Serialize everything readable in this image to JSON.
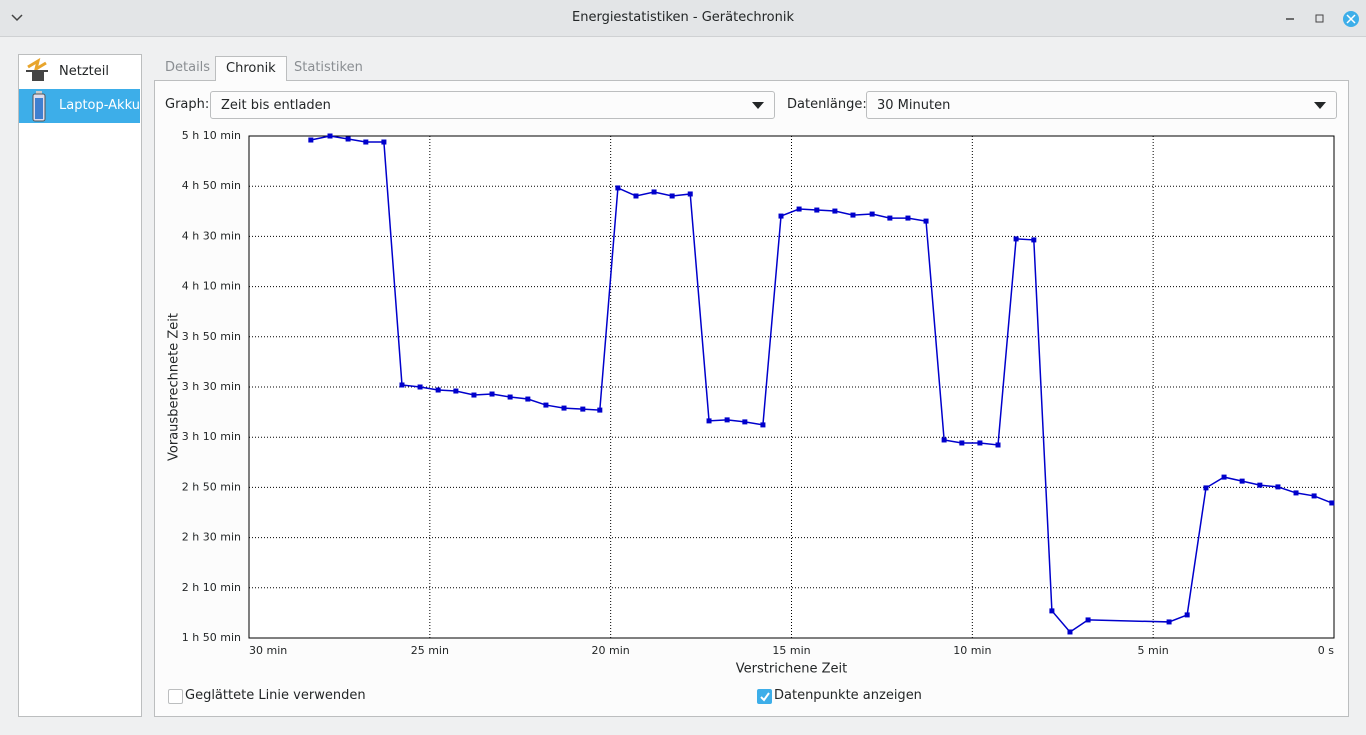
{
  "window": {
    "title": "Energiestatistiken - Gerätechronik"
  },
  "sidebar": {
    "items": [
      {
        "label": "Netzteil",
        "selected": false
      },
      {
        "label": "Laptop-Akku",
        "selected": true
      }
    ]
  },
  "tabs": {
    "items": [
      "Details",
      "Chronik",
      "Statistiken"
    ],
    "active": 1
  },
  "controls": {
    "graph_label": "Graph:",
    "graph_value": "Zeit bis entladen",
    "length_label": "Datenlänge:",
    "length_value": "30 Minuten"
  },
  "checkboxes": [
    {
      "label": "Geglättete Linie verwenden",
      "checked": false
    },
    {
      "label": "Datenpunkte anzeigen",
      "checked": true
    }
  ],
  "chart_data": {
    "type": "line",
    "x_label": "Verstrichene Zeit",
    "y_label": "Vorausberechnete Zeit",
    "grid": true,
    "markers": true,
    "xlim": [
      30,
      0
    ],
    "ylim": [
      110,
      310
    ],
    "xticks": [
      {
        "value": 30,
        "label": "30 min"
      },
      {
        "value": 25,
        "label": "25 min"
      },
      {
        "value": 20,
        "label": "20 min"
      },
      {
        "value": 15,
        "label": "15 min"
      },
      {
        "value": 10,
        "label": "10 min"
      },
      {
        "value": 5,
        "label": "5 min"
      },
      {
        "value": 0,
        "label": "0 s"
      }
    ],
    "yticks": [
      {
        "value": 110,
        "label": "1 h 50 min"
      },
      {
        "value": 130,
        "label": "2 h 10 min"
      },
      {
        "value": 150,
        "label": "2 h 30 min"
      },
      {
        "value": 170,
        "label": "2 h 50 min"
      },
      {
        "value": 190,
        "label": "3 h 10 min"
      },
      {
        "value": 210,
        "label": "3 h 30 min"
      },
      {
        "value": 230,
        "label": "3 h 50 min"
      },
      {
        "value": 250,
        "label": "4 h 10 min"
      },
      {
        "value": 270,
        "label": "4 h 30 min"
      },
      {
        "value": 290,
        "label": "4 h 50 min"
      },
      {
        "value": 310,
        "label": "5 h 10 min"
      }
    ],
    "x": [
      28.29,
      27.76,
      27.26,
      26.77,
      26.27,
      25.77,
      25.27,
      24.77,
      24.28,
      23.78,
      23.28,
      22.78,
      22.29,
      21.79,
      21.29,
      20.77,
      20.3,
      19.8,
      19.3,
      18.8,
      18.3,
      17.8,
      17.28,
      16.78,
      16.29,
      15.79,
      15.29,
      14.79,
      14.3,
      13.8,
      13.3,
      12.77,
      12.28,
      11.78,
      11.28,
      10.78,
      10.29,
      9.79,
      9.29,
      8.79,
      8.3,
      7.8,
      7.3,
      6.8,
      4.56,
      4.06,
      3.54,
      3.04,
      2.54,
      2.05,
      1.55,
      1.05,
      0.55,
      0.06
    ],
    "series": [
      {
        "color": "#0000cc",
        "values": [
          308.4,
          310,
          308.8,
          307.6,
          307.6,
          210.8,
          210,
          208.8,
          208.4,
          206.8,
          207.2,
          206,
          205.2,
          202.8,
          201.6,
          201.2,
          200.8,
          289.3,
          286.1,
          287.7,
          286.1,
          286.9,
          196.5,
          196.9,
          196.1,
          194.9,
          278.1,
          280.9,
          280.5,
          280.1,
          278.5,
          278.9,
          277.3,
          277.3,
          276.1,
          188.9,
          187.7,
          187.7,
          186.9,
          269,
          268.6,
          120.8,
          112.4,
          117.2,
          116.4,
          119.2,
          169.8,
          174.1,
          172.5,
          170.9,
          170.2,
          167.8,
          166.6,
          163.8
        ]
      }
    ]
  }
}
